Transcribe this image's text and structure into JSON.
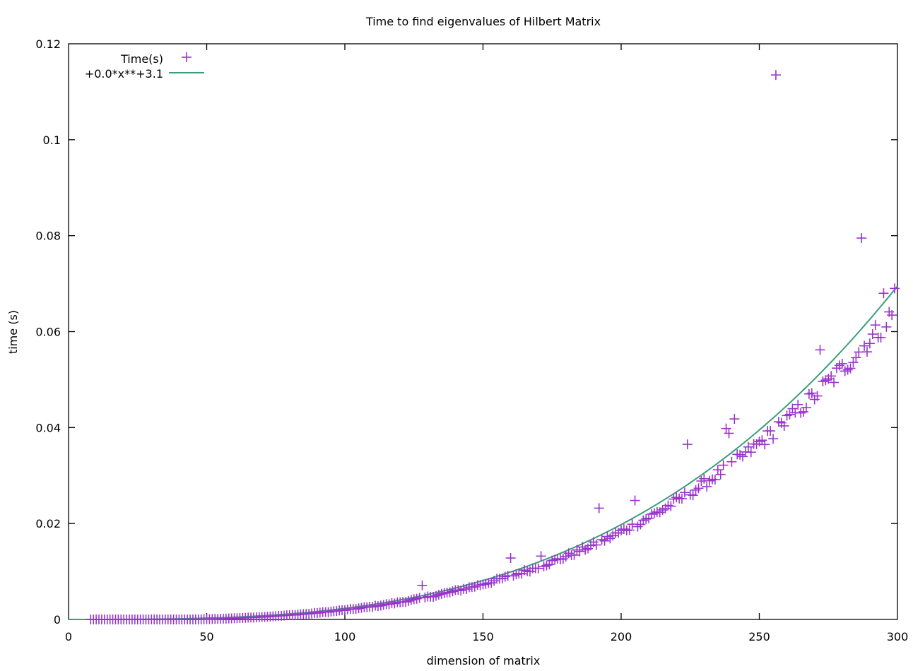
{
  "chart_data": {
    "type": "scatter",
    "title": "Time to find eigenvalues of Hilbert Matrix",
    "xlabel": "dimension of matrix",
    "ylabel": "time (s)",
    "xlim": [
      0,
      300
    ],
    "ylim": [
      0,
      0.12
    ],
    "xticks": [
      0,
      50,
      100,
      150,
      200,
      250,
      300
    ],
    "yticks": [
      0,
      0.02,
      0.04,
      0.06,
      0.08,
      0.1,
      0.12
    ],
    "xtick_labels": [
      "0",
      "50",
      "100",
      "150",
      "200",
      "250",
      "300"
    ],
    "ytick_labels": [
      "0",
      "0.02",
      "0.04",
      "0.06",
      "0.08",
      "0.1",
      "0.12"
    ],
    "grid": false,
    "legend_position": "top-left",
    "series": [
      {
        "name": "Time(s)",
        "kind": "points",
        "marker": "plus",
        "color": "#9933cc",
        "x_start": 8,
        "x_end": 299,
        "x_step": 1,
        "fit_exponent": 3.1,
        "fit_value_at_300": 0.0695,
        "outliers": [
          {
            "x": 128,
            "y": 0.0071
          },
          {
            "x": 160,
            "y": 0.0128
          },
          {
            "x": 171,
            "y": 0.0132
          },
          {
            "x": 192,
            "y": 0.0232
          },
          {
            "x": 205,
            "y": 0.0248
          },
          {
            "x": 224,
            "y": 0.0365
          },
          {
            "x": 238,
            "y": 0.0398
          },
          {
            "x": 239,
            "y": 0.0388
          },
          {
            "x": 241,
            "y": 0.0418
          },
          {
            "x": 256,
            "y": 0.1135
          },
          {
            "x": 257,
            "y": 0.0412
          },
          {
            "x": 272,
            "y": 0.0562
          },
          {
            "x": 287,
            "y": 0.0795
          },
          {
            "x": 295,
            "y": 0.068
          },
          {
            "x": 299,
            "y": 0.069
          }
        ]
      },
      {
        "name": "+0.0*x**+3.1",
        "kind": "line",
        "color": "#3a9e7a",
        "exponent": 3.1,
        "value_at_300": 0.0695
      }
    ]
  }
}
